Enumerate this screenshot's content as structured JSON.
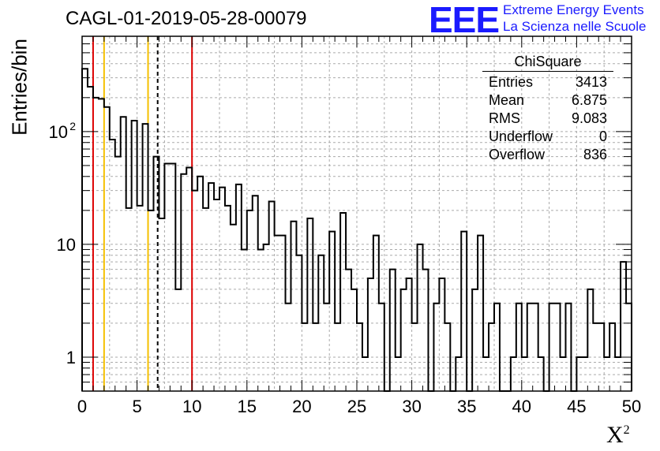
{
  "header": {
    "title": "CAGL-01-2019-05-28-00079",
    "logo_text": "EEE",
    "tagline_1": "Extreme Energy Events",
    "tagline_2": "La Scienza nelle Scuole"
  },
  "stats": {
    "title": "ChiSquare",
    "rows": [
      {
        "label": "Entries",
        "value": "3413"
      },
      {
        "label": "Mean",
        "value": "6.875"
      },
      {
        "label": "RMS",
        "value": "9.083"
      },
      {
        "label": "Underflow",
        "value": "0"
      },
      {
        "label": "Overflow",
        "value": "836"
      }
    ]
  },
  "chart_data": {
    "type": "histogram",
    "title": "CAGL-01-2019-05-28-00079",
    "xlabel": "X",
    "xlabel_superscript": "2",
    "ylabel": "Entries/bin",
    "xlim": [
      0,
      50
    ],
    "ylim": [
      0.5,
      700
    ],
    "yscale": "log",
    "bin_width": 0.5,
    "grid": true,
    "x_ticks": [
      0,
      5,
      10,
      15,
      20,
      25,
      30,
      35,
      40,
      45,
      50
    ],
    "y_tick_labels": [
      {
        "value": 1,
        "label": "1"
      },
      {
        "value": 10,
        "label": "10"
      },
      {
        "value": 100,
        "label": "10",
        "exp": "2"
      }
    ],
    "bin_values": [
      360,
      250,
      200,
      195,
      165,
      85,
      60,
      135,
      21,
      125,
      22,
      117,
      20,
      60,
      17,
      52,
      52,
      4,
      42,
      48,
      30,
      40,
      21,
      35,
      25,
      32,
      22,
      15,
      34,
      9,
      20,
      27,
      9,
      10,
      24,
      12,
      12,
      3,
      16,
      8,
      2,
      17,
      2,
      8,
      3,
      13,
      2,
      19,
      6,
      4,
      2,
      1,
      5,
      12,
      3,
      0.5,
      6,
      1,
      4,
      5,
      2,
      10,
      6,
      0.5,
      3,
      5,
      2,
      0.5,
      1,
      13,
      0.5,
      4,
      12,
      1,
      2,
      3,
      0.5,
      0.5,
      1,
      3,
      1,
      3,
      3,
      1,
      0.5,
      3,
      3,
      1,
      3,
      0.5,
      1,
      1,
      4,
      2,
      2,
      1,
      2,
      1,
      7,
      3
    ],
    "vertical_lines": [
      {
        "x": 1.0,
        "color": "#dd0000",
        "style": "solid"
      },
      {
        "x": 2.0,
        "color": "#f5c000",
        "style": "solid"
      },
      {
        "x": 6.0,
        "color": "#f5c000",
        "style": "solid"
      },
      {
        "x": 6.875,
        "color": "#000000",
        "style": "dashed"
      },
      {
        "x": 10.0,
        "color": "#dd0000",
        "style": "solid"
      }
    ]
  }
}
